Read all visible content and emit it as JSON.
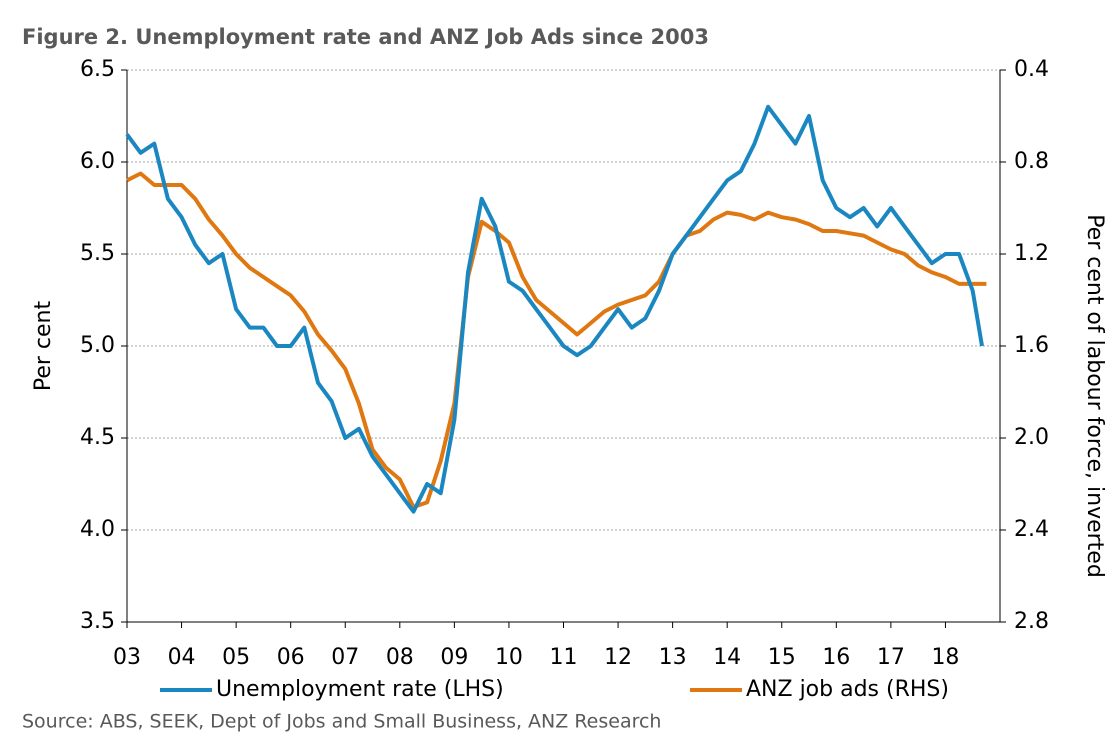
{
  "chart_data": {
    "type": "line",
    "title": "Figure 2.  Unemployment rate and ANZ Job Ads since 2003",
    "ylabel": "Per cent",
    "y2label": "Per cent of labour force, inverted",
    "source": "Source: ABS, SEEK, Dept of Jobs and Small Business, ANZ Research",
    "xlim": [
      3,
      19
    ],
    "xticks": [
      {
        "value": 3,
        "label": "03"
      },
      {
        "value": 4,
        "label": "04"
      },
      {
        "value": 5,
        "label": "05"
      },
      {
        "value": 6,
        "label": "06"
      },
      {
        "value": 7,
        "label": "07"
      },
      {
        "value": 8,
        "label": "08"
      },
      {
        "value": 9,
        "label": "09"
      },
      10,
      11,
      12,
      13,
      14,
      15,
      16,
      17,
      18
    ],
    "ylim": [
      3.5,
      6.5
    ],
    "yticks": [
      3.5,
      {
        "value": 4,
        "label": "4.0"
      },
      4.5,
      {
        "value": 5,
        "label": "5.0"
      },
      5.5,
      {
        "value": 6,
        "label": "6.0"
      },
      6.5
    ],
    "y2lim": [
      0.4,
      2.8
    ],
    "y2_inverted": true,
    "y2ticks": [
      0.4,
      0.8,
      1.2,
      1.6,
      {
        "value": 2,
        "label": "2.0"
      },
      2.4,
      2.8
    ],
    "grid": true,
    "legend": "bottom",
    "series": [
      {
        "name": "Unemployment rate (LHS)",
        "color": "#1b87c1",
        "axis": "y",
        "x": [
          3,
          3.25,
          3.5,
          3.75,
          4,
          4.25,
          4.5,
          4.75,
          5,
          5.25,
          5.5,
          5.75,
          6,
          6.25,
          6.5,
          6.75,
          7,
          7.25,
          7.5,
          7.75,
          8,
          8.25,
          8.5,
          8.75,
          9,
          9.25,
          9.5,
          9.75,
          10,
          10.25,
          10.5,
          10.75,
          11,
          11.25,
          11.5,
          11.75,
          12,
          12.25,
          12.5,
          12.75,
          13,
          13.25,
          13.5,
          13.75,
          14,
          14.25,
          14.5,
          14.75,
          15,
          15.25,
          15.5,
          15.75,
          16,
          16.25,
          16.5,
          16.75,
          17,
          17.25,
          17.5,
          17.75,
          18,
          18.25,
          18.5,
          18.67
        ],
        "values": [
          6.15,
          6.05,
          6.1,
          5.8,
          5.7,
          5.55,
          5.45,
          5.5,
          5.2,
          5.1,
          5.1,
          5.0,
          5.0,
          5.1,
          4.8,
          4.7,
          4.5,
          4.55,
          4.4,
          4.3,
          4.2,
          4.1,
          4.25,
          4.2,
          4.6,
          5.4,
          5.8,
          5.65,
          5.35,
          5.3,
          5.2,
          5.1,
          5.0,
          4.95,
          5.0,
          5.1,
          5.2,
          5.1,
          5.15,
          5.3,
          5.5,
          5.6,
          5.7,
          5.8,
          5.9,
          5.95,
          6.1,
          6.3,
          6.2,
          6.1,
          6.25,
          5.9,
          5.75,
          5.7,
          5.75,
          5.65,
          5.75,
          5.65,
          5.55,
          5.45,
          5.5,
          5.5,
          5.3,
          5.0
        ]
      },
      {
        "name": "ANZ job ads (RHS)",
        "color": "#df7810",
        "axis": "y2",
        "x": [
          3,
          3.25,
          3.5,
          3.75,
          4,
          4.25,
          4.5,
          4.75,
          5,
          5.25,
          5.5,
          5.75,
          6,
          6.25,
          6.5,
          6.75,
          7,
          7.25,
          7.5,
          7.75,
          8,
          8.25,
          8.5,
          8.75,
          9,
          9.25,
          9.5,
          9.75,
          10,
          10.25,
          10.5,
          10.75,
          11,
          11.25,
          11.5,
          11.75,
          12,
          12.25,
          12.5,
          12.75,
          13,
          13.25,
          13.5,
          13.75,
          14,
          14.25,
          14.5,
          14.75,
          15,
          15.25,
          15.5,
          15.75,
          16,
          16.25,
          16.5,
          16.75,
          17,
          17.25,
          17.5,
          17.75,
          18,
          18.25,
          18.5,
          18.75
        ],
        "values": [
          0.88,
          0.85,
          0.9,
          0.9,
          0.9,
          0.96,
          1.05,
          1.12,
          1.2,
          1.26,
          1.3,
          1.34,
          1.38,
          1.45,
          1.55,
          1.62,
          1.7,
          1.85,
          2.05,
          2.13,
          2.18,
          2.3,
          2.28,
          2.1,
          1.85,
          1.3,
          1.06,
          1.1,
          1.15,
          1.3,
          1.4,
          1.45,
          1.5,
          1.55,
          1.5,
          1.45,
          1.42,
          1.4,
          1.38,
          1.32,
          1.2,
          1.12,
          1.1,
          1.05,
          1.02,
          1.03,
          1.05,
          1.02,
          1.04,
          1.05,
          1.07,
          1.1,
          1.1,
          1.11,
          1.12,
          1.15,
          1.18,
          1.2,
          1.25,
          1.28,
          1.3,
          1.33,
          1.33,
          1.33
        ]
      }
    ]
  }
}
